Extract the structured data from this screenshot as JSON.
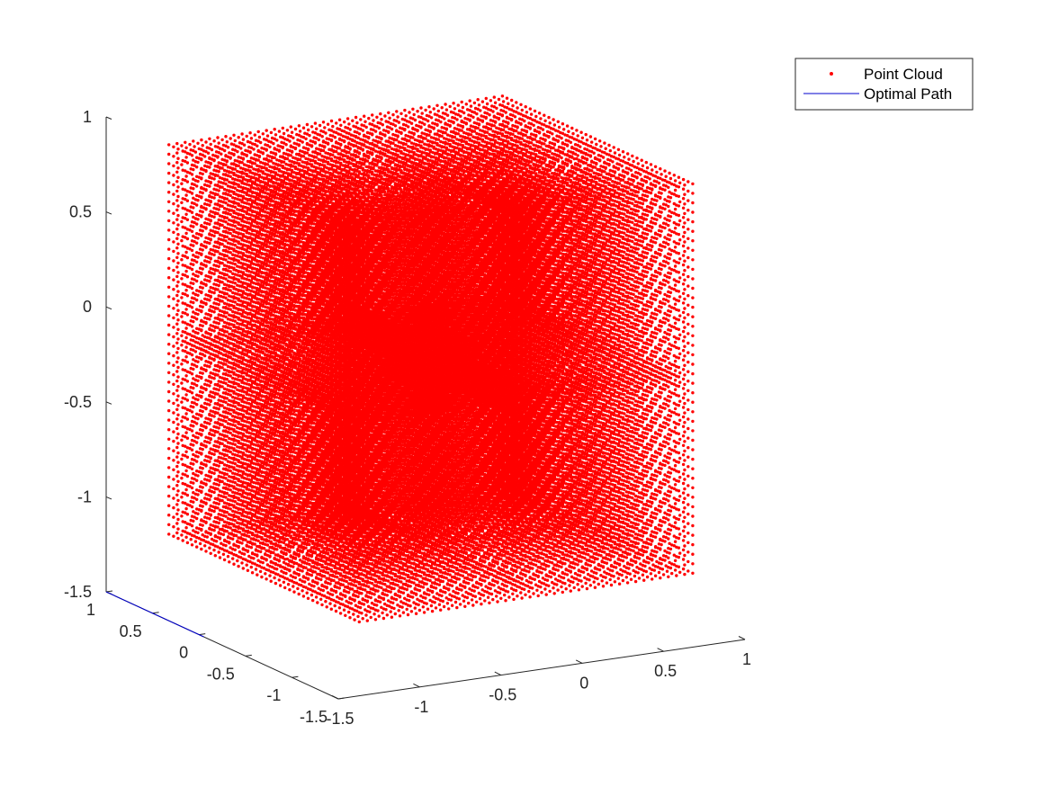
{
  "chart_data": {
    "type": "scatter",
    "projection": "3d",
    "title": "",
    "xlabel": "",
    "ylabel": "",
    "zlabel": "",
    "xlim": [
      -1.5,
      1
    ],
    "ylim": [
      -1.5,
      1
    ],
    "zlim": [
      -1.5,
      1
    ],
    "x_ticks": [
      "-1.5",
      "-1",
      "-0.5",
      "0",
      "0.5",
      "1"
    ],
    "y_ticks": [
      "-1.5",
      "-1",
      "-0.5",
      "0",
      "0.5",
      "1"
    ],
    "z_ticks": [
      "-1.5",
      "-1",
      "-0.5",
      "0",
      "0.5",
      "1"
    ],
    "grid": false,
    "legend_location": "top-right",
    "series": [
      {
        "name": "Point Cloud",
        "style": "dots",
        "color": "#ff0000",
        "grid_points_per_axis": 21,
        "cube_extent": [
          -1,
          1
        ],
        "cubes": [
          {
            "center": [
              -0.7,
              -0.7,
              0.35
            ]
          },
          {
            "center": [
              -0.7,
              0.35,
              0.35
            ]
          },
          {
            "center": [
              0.35,
              -0.7,
              0.35
            ]
          },
          {
            "center": [
              0.35,
              0.35,
              0.35
            ]
          },
          {
            "center": [
              -0.7,
              -0.7,
              -0.7
            ]
          },
          {
            "center": [
              -0.7,
              0.35,
              -0.7
            ]
          },
          {
            "center": [
              0.35,
              -0.7,
              -0.7
            ]
          },
          {
            "center": [
              0.35,
              0.35,
              -0.7
            ]
          }
        ]
      },
      {
        "name": "Optimal Path",
        "style": "line",
        "color": "#0000cc",
        "points": [
          [
            -1.5,
            1,
            -1.5
          ],
          [
            -1.5,
            -0.05,
            -1.5
          ]
        ]
      }
    ]
  }
}
